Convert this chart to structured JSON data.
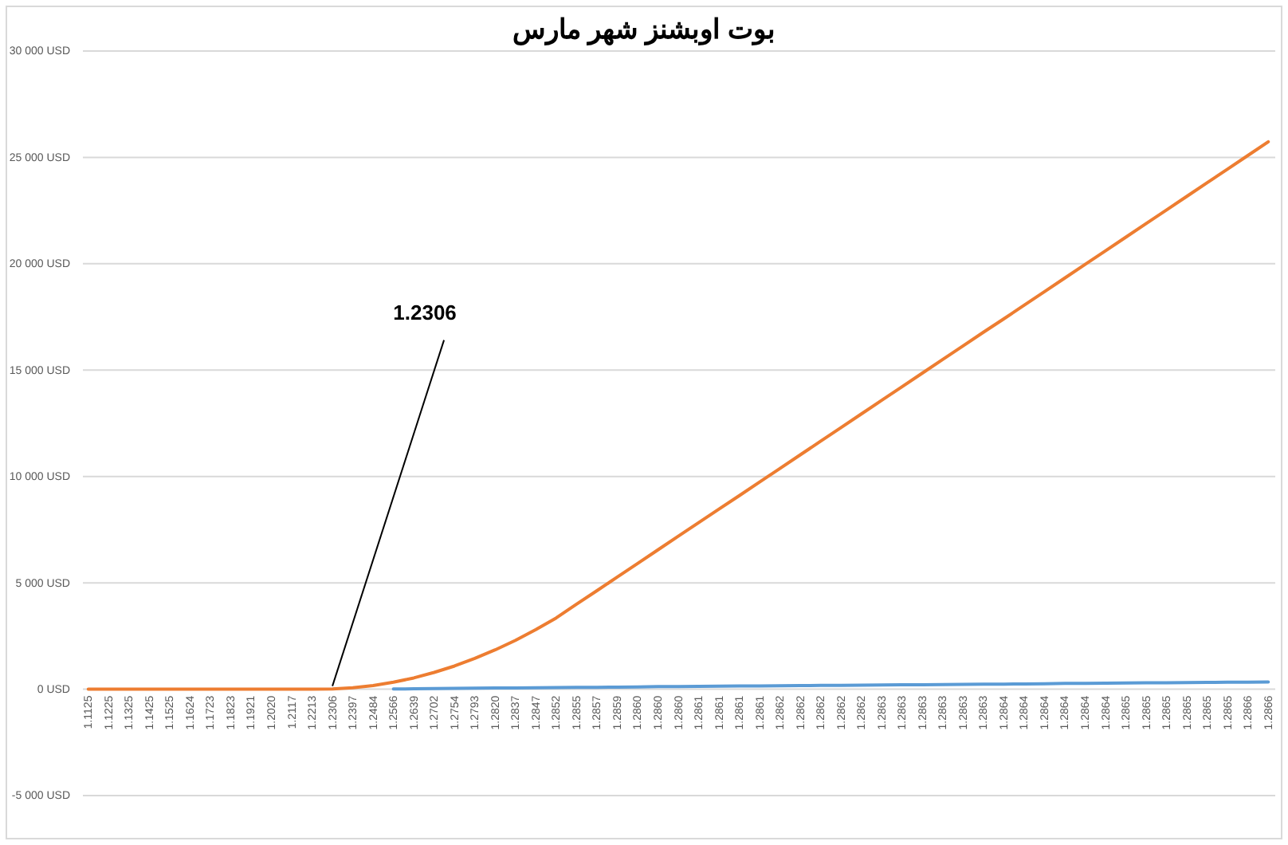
{
  "chart_data": {
    "type": "line",
    "title": "بوت اوبشنز شهر مارس",
    "categories": [
      "1.1125",
      "1.1225",
      "1.1325",
      "1.1425",
      "1.1525",
      "1.1624",
      "1.1723",
      "1.1823",
      "1.1921",
      "1.2020",
      "1.2117",
      "1.2213",
      "1.2306",
      "1.2397",
      "1.2484",
      "1.2566",
      "1.2639",
      "1.2702",
      "1.2754",
      "1.2793",
      "1.2820",
      "1.2837",
      "1.2847",
      "1.2852",
      "1.2855",
      "1.2857",
      "1.2859",
      "1.2860",
      "1.2860",
      "1.2860",
      "1.2861",
      "1.2861",
      "1.2861",
      "1.2861",
      "1.2862",
      "1.2862",
      "1.2862",
      "1.2862",
      "1.2862",
      "1.2863",
      "1.2863",
      "1.2863",
      "1.2863",
      "1.2863",
      "1.2863",
      "1.2864",
      "1.2864",
      "1.2864",
      "1.2864",
      "1.2864",
      "1.2864",
      "1.2865",
      "1.2865",
      "1.2865",
      "1.2865",
      "1.2865",
      "1.2865",
      "1.2866",
      "1.2866"
    ],
    "series": [
      {
        "color": "#5b9bd5",
        "values": [
          null,
          null,
          null,
          null,
          null,
          null,
          null,
          null,
          null,
          null,
          null,
          null,
          null,
          null,
          null,
          10,
          20,
          30,
          40,
          50,
          60,
          60,
          70,
          80,
          90,
          90,
          100,
          110,
          120,
          120,
          130,
          140,
          150,
          150,
          160,
          170,
          180,
          180,
          190,
          200,
          210,
          210,
          220,
          230,
          240,
          240,
          250,
          260,
          270,
          270,
          280,
          290,
          300,
          300,
          310,
          320,
          330,
          330,
          340
        ]
      },
      {
        "color": "#ed7d31",
        "values": [
          0,
          0,
          0,
          0,
          0,
          0,
          0,
          0,
          0,
          0,
          0,
          0,
          10,
          70,
          170,
          330,
          530,
          790,
          1090,
          1450,
          1850,
          2300,
          2800,
          3350,
          4000,
          4630,
          5270,
          5910,
          6550,
          7190,
          7830,
          8470,
          9100,
          9740,
          10380,
          11020,
          11660,
          12300,
          12940,
          13580,
          14220,
          14860,
          15500,
          16140,
          16780,
          17410,
          18050,
          18690,
          19330,
          19970,
          20610,
          21250,
          21890,
          22530,
          23170,
          23810,
          24450,
          25090,
          25730
        ]
      }
    ],
    "ylim": [
      -5000,
      30000
    ],
    "yticks": [
      {
        "value": -5000,
        "label": "-5 000 USD"
      },
      {
        "value": 0,
        "label": "0 USD"
      },
      {
        "value": 5000,
        "label": "5 000 USD"
      },
      {
        "value": 10000,
        "label": "10 000 USD"
      },
      {
        "value": 15000,
        "label": "15 000 USD"
      },
      {
        "value": 20000,
        "label": "20 000 USD"
      },
      {
        "value": 25000,
        "label": "25 000 USD"
      },
      {
        "value": 30000,
        "label": "30 000 USD"
      }
    ],
    "grid": "y",
    "annotations": [
      {
        "text": "1.2306",
        "x": "1.2306",
        "y": 0
      }
    ]
  }
}
